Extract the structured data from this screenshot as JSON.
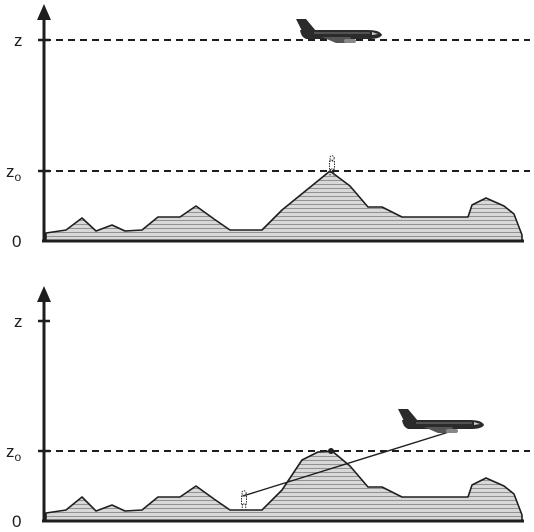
{
  "panels": [
    {
      "axis_labels": {
        "z": "z",
        "z0_main": "z",
        "z0_sub": "o",
        "origin": "0"
      }
    },
    {
      "axis_labels": {
        "z": "z",
        "z0_main": "z",
        "z0_sub": "o",
        "origin": "0"
      }
    }
  ],
  "colors": {
    "terrain_fill": "#d8d8d8",
    "terrain_stripes": "#8a8a8a",
    "ink": "#1e1e1e"
  },
  "icons": [
    "airplane-icon",
    "hiker-icon",
    "mountain-terrain",
    "axis-arrow"
  ]
}
